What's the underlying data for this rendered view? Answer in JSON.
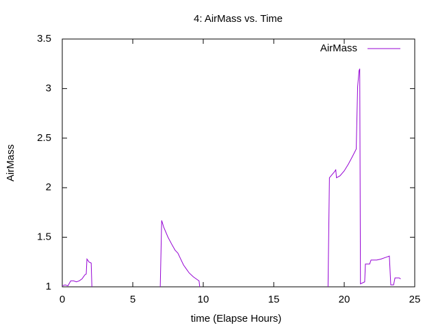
{
  "chart_data": {
    "type": "line",
    "title": "4: AirMass vs. Time",
    "x_label": "time (Elapse Hours)",
    "y_label": "AirMass",
    "x": [
      0,
      0.2,
      0.4,
      0.6,
      0.8,
      1.0,
      1.2,
      1.4,
      1.6,
      1.7,
      1.75,
      1.9,
      2.05,
      2.1,
      4.5,
      6.95,
      7.05,
      7.2,
      7.5,
      7.8,
      8.0,
      8.2,
      8.4,
      8.6,
      8.8,
      9.0,
      9.3,
      9.6,
      9.7,
      9.75,
      14,
      18.85,
      18.95,
      19.3,
      19.4,
      19.45,
      19.7,
      20.0,
      20.3,
      20.6,
      20.85,
      20.95,
      21.05,
      21.1,
      21.15,
      21.45,
      21.5,
      21.8,
      21.9,
      22.3,
      22.6,
      23.0,
      23.2,
      23.3,
      23.5,
      23.6,
      23.9,
      24.0
    ],
    "series": [
      {
        "name": "AirMass",
        "color": "#9400d3",
        "values": [
          1.01,
          1.02,
          1.01,
          1.06,
          1.06,
          1.05,
          1.06,
          1.08,
          1.12,
          1.13,
          1.28,
          1.25,
          1.24,
          1.0,
          null,
          1.0,
          1.67,
          1.6,
          1.5,
          1.42,
          1.37,
          1.34,
          1.28,
          1.22,
          1.18,
          1.14,
          1.1,
          1.07,
          1.06,
          1.0,
          null,
          1.0,
          2.1,
          2.16,
          2.18,
          2.1,
          2.12,
          2.17,
          2.24,
          2.32,
          2.39,
          3.02,
          3.18,
          3.2,
          1.03,
          1.05,
          1.23,
          1.23,
          1.27,
          1.27,
          1.28,
          1.3,
          1.31,
          1.02,
          1.02,
          1.09,
          1.09,
          1.08
        ]
      }
    ],
    "xlim": [
      0,
      25
    ],
    "xticks": [
      0,
      5,
      10,
      15,
      20,
      25
    ],
    "ylim": [
      1,
      3.5
    ],
    "yticks": [
      1,
      1.5,
      2,
      2.5,
      3,
      3.5
    ],
    "grid": false,
    "legend": "top-right"
  }
}
